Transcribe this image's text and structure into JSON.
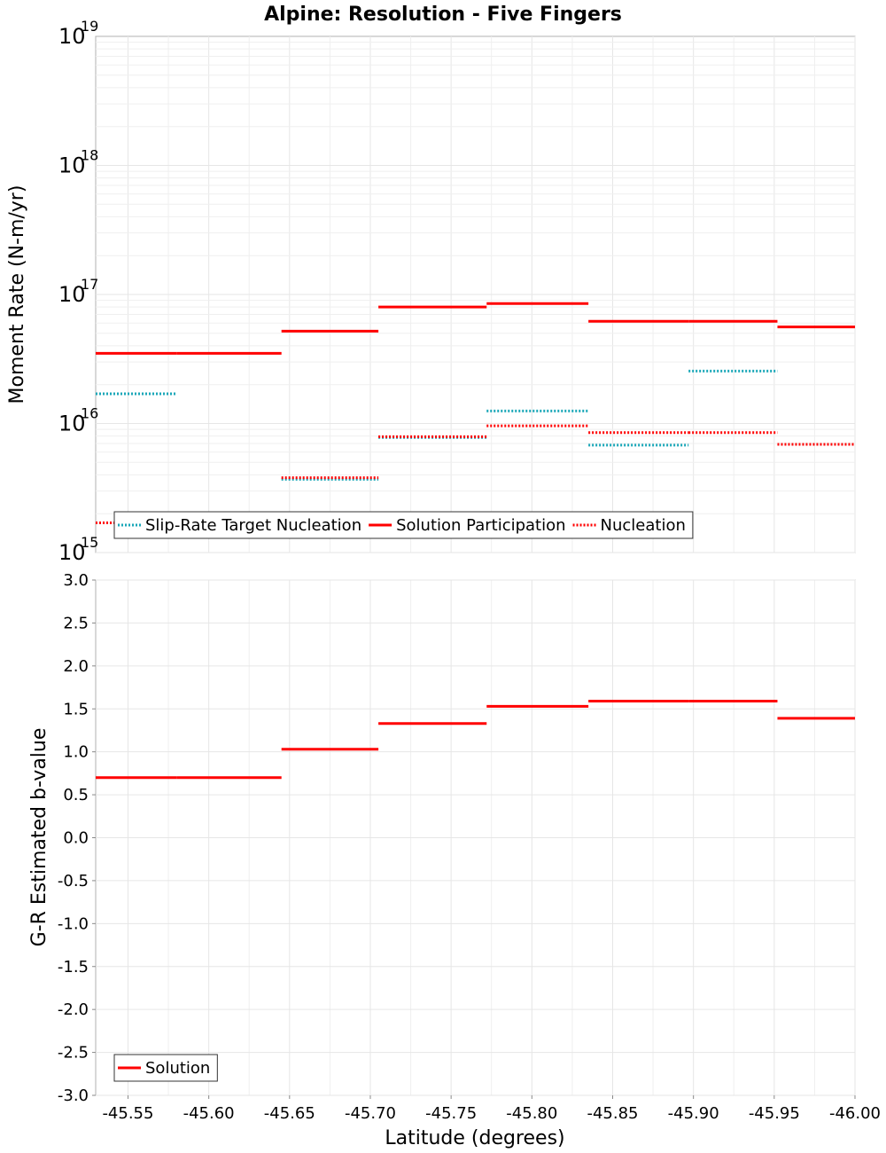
{
  "title": "Alpine: Resolution - Five Fingers",
  "chart_data": [
    {
      "type": "line",
      "step_segments": true,
      "ylabel": "Moment Rate (N-m/yr)",
      "yscale": "log",
      "ylim": [
        1000000000000000.0,
        1e+19
      ],
      "xlim": [
        -45.53,
        -46.0
      ],
      "y_ticks": [
        {
          "base": "10",
          "exp": "15",
          "value": 1000000000000000.0
        },
        {
          "base": "10",
          "exp": "16",
          "value": 1e+16
        },
        {
          "base": "10",
          "exp": "17",
          "value": 1e+17
        },
        {
          "base": "10",
          "exp": "18",
          "value": 1e+18
        },
        {
          "base": "10",
          "exp": "19",
          "value": 1e+19
        }
      ],
      "legend": {
        "position": "bottom-left",
        "entries": [
          {
            "label": "Slip-Rate Target Nucleation",
            "color": "#1aa7b8",
            "style": "dotted"
          },
          {
            "label": "Solution Participation",
            "color": "#ff0000",
            "style": "solid"
          },
          {
            "label": "Nucleation",
            "color": "#ff0000",
            "style": "dotted"
          }
        ]
      },
      "series": [
        {
          "name": "Slip-Rate Target Nucleation",
          "color": "#1aa7b8",
          "style": "dotted",
          "segments": [
            {
              "x0": -45.53,
              "x1": -45.58,
              "y": 1.7e+16
            },
            {
              "x0": -45.58,
              "x1": -45.645,
              "y": 1700000000000000.0
            },
            {
              "x0": -45.645,
              "x1": -45.705,
              "y": 3700000000000000.0
            },
            {
              "x0": -45.705,
              "x1": -45.772,
              "y": 7800000000000000.0
            },
            {
              "x0": -45.772,
              "x1": -45.835,
              "y": 1.25e+16
            },
            {
              "x0": -45.835,
              "x1": -45.897,
              "y": 6800000000000000.0
            },
            {
              "x0": -45.897,
              "x1": -45.952,
              "y": 2.55e+16
            },
            {
              "x0": -45.952,
              "x1": -46.0,
              "y": 6900000000000000.0
            }
          ]
        },
        {
          "name": "Solution Participation",
          "color": "#ff0000",
          "style": "solid",
          "segments": [
            {
              "x0": -45.53,
              "x1": -45.58,
              "y": 3.5e+16
            },
            {
              "x0": -45.58,
              "x1": -45.645,
              "y": 3.5e+16
            },
            {
              "x0": -45.645,
              "x1": -45.705,
              "y": 5.2e+16
            },
            {
              "x0": -45.705,
              "x1": -45.772,
              "y": 8e+16
            },
            {
              "x0": -45.772,
              "x1": -45.835,
              "y": 8.5e+16
            },
            {
              "x0": -45.835,
              "x1": -45.897,
              "y": 6.2e+16
            },
            {
              "x0": -45.897,
              "x1": -45.952,
              "y": 6.2e+16
            },
            {
              "x0": -45.952,
              "x1": -46.0,
              "y": 5.6e+16
            }
          ]
        },
        {
          "name": "Nucleation",
          "color": "#ff0000",
          "style": "dotted",
          "segments": [
            {
              "x0": -45.53,
              "x1": -45.58,
              "y": 1700000000000000.0
            },
            {
              "x0": -45.58,
              "x1": -45.645,
              "y": 1700000000000000.0
            },
            {
              "x0": -45.645,
              "x1": -45.705,
              "y": 3800000000000000.0
            },
            {
              "x0": -45.705,
              "x1": -45.772,
              "y": 7900000000000000.0
            },
            {
              "x0": -45.772,
              "x1": -45.835,
              "y": 9600000000000000.0
            },
            {
              "x0": -45.835,
              "x1": -45.897,
              "y": 8500000000000000.0
            },
            {
              "x0": -45.897,
              "x1": -45.952,
              "y": 8500000000000000.0
            },
            {
              "x0": -45.952,
              "x1": -46.0,
              "y": 6900000000000000.0
            }
          ]
        }
      ]
    },
    {
      "type": "line",
      "step_segments": true,
      "xlabel": "Latitude (degrees)",
      "ylabel": "G-R Estimated b-value",
      "ylim": [
        -3.0,
        3.0
      ],
      "xlim": [
        -45.53,
        -46.0
      ],
      "y_ticks": [
        "-3.0",
        "-2.5",
        "-2.0",
        "-1.5",
        "-1.0",
        "-0.5",
        "0.0",
        "0.5",
        "1.0",
        "1.5",
        "2.0",
        "2.5",
        "3.0"
      ],
      "x_ticks": [
        "-45.55",
        "-45.60",
        "-45.65",
        "-45.70",
        "-45.75",
        "-45.80",
        "-45.85",
        "-45.90",
        "-45.95",
        "-46.00"
      ],
      "legend": {
        "position": "bottom-left",
        "entries": [
          {
            "label": "Solution",
            "color": "#ff0000",
            "style": "solid"
          }
        ]
      },
      "series": [
        {
          "name": "Solution",
          "color": "#ff0000",
          "style": "solid",
          "segments": [
            {
              "x0": -45.53,
              "x1": -45.58,
              "y": 0.7
            },
            {
              "x0": -45.58,
              "x1": -45.645,
              "y": 0.7
            },
            {
              "x0": -45.645,
              "x1": -45.705,
              "y": 1.03
            },
            {
              "x0": -45.705,
              "x1": -45.772,
              "y": 1.33
            },
            {
              "x0": -45.772,
              "x1": -45.835,
              "y": 1.53
            },
            {
              "x0": -45.835,
              "x1": -45.897,
              "y": 1.59
            },
            {
              "x0": -45.897,
              "x1": -45.952,
              "y": 1.59
            },
            {
              "x0": -45.952,
              "x1": -46.0,
              "y": 1.39
            }
          ]
        }
      ]
    }
  ]
}
